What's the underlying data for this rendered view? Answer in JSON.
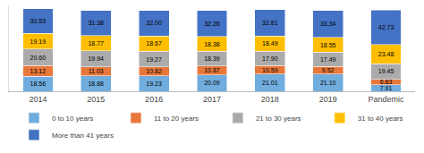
{
  "chart_data": {
    "type": "bar",
    "stacked": true,
    "categories": [
      "2014",
      "2015",
      "2016",
      "2017",
      "2018",
      "2019",
      "Pandemic"
    ],
    "series": [
      {
        "name": "0 to 10 years",
        "color": "#70ADDE",
        "values": [
          18.56,
          18.88,
          19.23,
          20.09,
          21.01,
          21.1,
          7.91
        ],
        "value_labels": [
          "18.56",
          "18.88",
          "19.23",
          "20.09",
          "21.01",
          "21.10",
          "7.91"
        ]
      },
      {
        "name": "11 to 20 years",
        "color": "#E8773A",
        "values": [
          13.12,
          11.03,
          10.82,
          10.87,
          10.59,
          9.52,
          6.83
        ],
        "value_labels": [
          "13.12",
          "11.03",
          "10.82",
          "10.87",
          "10.59",
          "9.52",
          "6.83"
        ]
      },
      {
        "name": "21 to 30 years",
        "color": "#ABABAB",
        "values": [
          20.6,
          19.94,
          19.27,
          18.39,
          17.9,
          17.49,
          19.45
        ],
        "value_labels": [
          "20.60",
          "19.94",
          "19.27",
          "18.39",
          "17.90",
          "17.49",
          "19.45"
        ]
      },
      {
        "name": "31 to 40 years",
        "color": "#FFBF00",
        "values": [
          19.19,
          18.77,
          18.67,
          18.38,
          18.49,
          18.55,
          23.48
        ],
        "value_labels": [
          "19.19",
          "18.77",
          "18.67",
          "18.38",
          "18.49",
          "18.55",
          "23.48"
        ]
      },
      {
        "name": "More than 41 years",
        "color": "#4472C4",
        "values": [
          30.53,
          31.38,
          32.0,
          32.26,
          32.81,
          33.34,
          42.73
        ],
        "value_labels": [
          "30.53",
          "31.38",
          "32.00",
          "32.26",
          "32.81",
          "33.34",
          "42.73"
        ]
      }
    ],
    "ylim": [
      0,
      106.08
    ],
    "tick_labels": "x",
    "data_labels": true,
    "grid": false,
    "legend": "bottom"
  }
}
